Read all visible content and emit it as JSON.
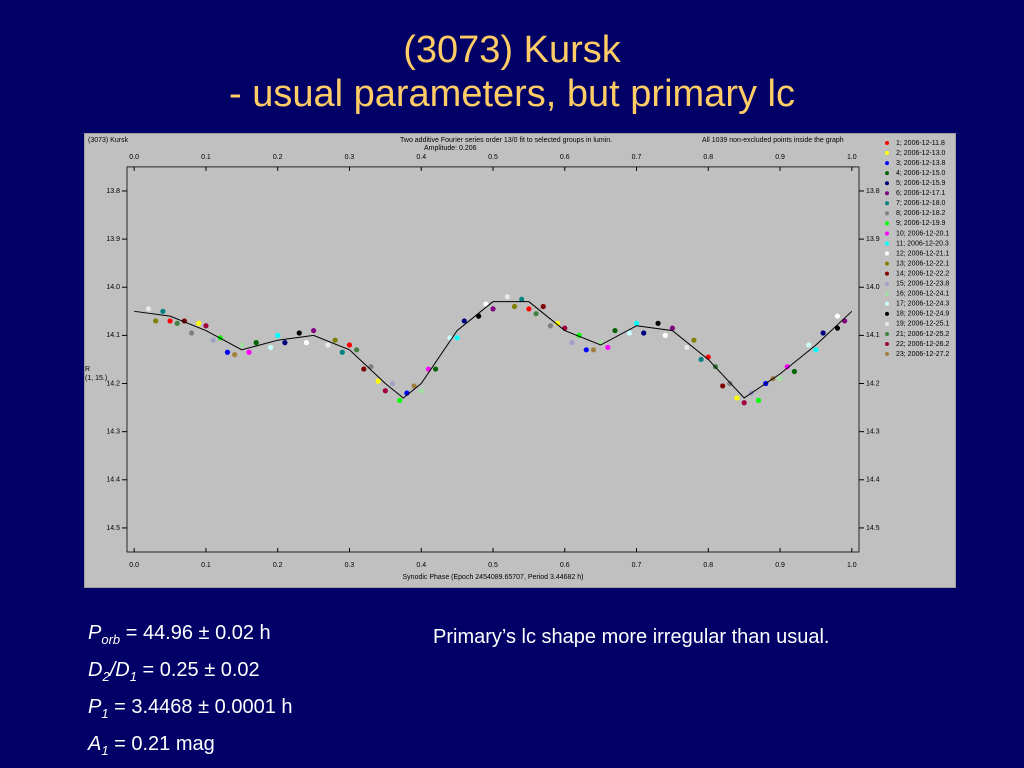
{
  "slide": {
    "title": [
      "(3073) Kursk",
      "- usual parameters, but primary lc"
    ]
  },
  "chart_data": {
    "type": "scatter",
    "object_label": "(3073) Kursk",
    "fit_description": "Two additive Fourier series order 13/0 fit to selected groups in lumin.",
    "amplitude_label": "Amplitude: 0.206",
    "points_note": "All 1039 non-excluded points inside the graph",
    "ylabel": [
      "R",
      "(1, 15.)"
    ],
    "xlabel": "Synodic Phase (Epoch 2454089.65707, Period 3.44682 h)",
    "xlim": [
      -0.01,
      1.01
    ],
    "ylim": [
      13.75,
      14.55
    ],
    "y_inverted": true,
    "xticks": [
      {
        "value": 0,
        "label": "0.0"
      },
      0.1,
      0.2,
      0.3,
      0.4,
      0.5,
      0.6,
      0.7,
      0.8,
      0.9,
      {
        "value": 1,
        "label": "1.0"
      }
    ],
    "yticks": [
      13.8,
      13.9,
      {
        "value": 14,
        "label": "14.0"
      },
      14.1,
      14.2,
      14.3,
      14.4,
      14.5
    ],
    "series": [
      {
        "name": "1; 2006-12-11.8",
        "color": "#ff0000",
        "x": [
          0.05,
          0.3,
          0.55,
          0.8
        ],
        "values": [
          14.07,
          14.12,
          14.045,
          14.145
        ]
      },
      {
        "name": "2; 2006-12-13.0",
        "color": "#ffff00",
        "x": [
          0.09,
          0.34,
          0.59,
          0.84
        ],
        "values": [
          14.075,
          14.195,
          14.075,
          14.23
        ]
      },
      {
        "name": "3; 2006-12-13.8",
        "color": "#0000ff",
        "x": [
          0.13,
          0.38,
          0.63,
          0.88
        ],
        "values": [
          14.135,
          14.22,
          14.13,
          14.2
        ]
      },
      {
        "name": "4; 2006-12-15.0",
        "color": "#006400",
        "x": [
          0.17,
          0.42,
          0.67,
          0.92
        ],
        "values": [
          14.115,
          14.17,
          14.09,
          14.175
        ]
      },
      {
        "name": "5; 2006-12-15.9",
        "color": "#000080",
        "x": [
          0.21,
          0.46,
          0.71,
          0.96
        ],
        "values": [
          14.115,
          14.07,
          14.095,
          14.095
        ]
      },
      {
        "name": "6; 2006-12-17.1",
        "color": "#800080",
        "x": [
          0.25,
          0.5,
          0.75,
          0.99
        ],
        "values": [
          14.09,
          14.045,
          14.085,
          14.07
        ]
      },
      {
        "name": "7; 2006-12-18.0",
        "color": "#008080",
        "x": [
          0.29,
          0.54,
          0.79,
          0.04
        ],
        "values": [
          14.135,
          14.025,
          14.15,
          14.05
        ]
      },
      {
        "name": "8; 2006-12-18.2",
        "color": "#808080",
        "x": [
          0.33,
          0.58,
          0.83,
          0.08
        ],
        "values": [
          14.165,
          14.08,
          14.2,
          14.095
        ]
      },
      {
        "name": "9; 2006-12-19.9",
        "color": "#00ff00",
        "x": [
          0.37,
          0.62,
          0.87,
          0.12
        ],
        "values": [
          14.235,
          14.1,
          14.235,
          14.105
        ]
      },
      {
        "name": "10; 2006-12-20.1",
        "color": "#ff00ff",
        "x": [
          0.41,
          0.66,
          0.91,
          0.16
        ],
        "values": [
          14.17,
          14.125,
          14.165,
          14.135
        ]
      },
      {
        "name": "11; 2006-12-20.3",
        "color": "#00ffff",
        "x": [
          0.45,
          0.7,
          0.95,
          0.2
        ],
        "values": [
          14.105,
          14.075,
          14.13,
          14.1
        ]
      },
      {
        "name": "12; 2006-12-21.1",
        "color": "#ffffff",
        "x": [
          0.49,
          0.74,
          0.98,
          0.24
        ],
        "values": [
          14.035,
          14.1,
          14.06,
          14.115
        ]
      },
      {
        "name": "13; 2006-12-22.1",
        "color": "#808000",
        "x": [
          0.53,
          0.78,
          0.03,
          0.28
        ],
        "values": [
          14.04,
          14.11,
          14.07,
          14.11
        ]
      },
      {
        "name": "14; 2006-12-22.2",
        "color": "#800000",
        "x": [
          0.57,
          0.82,
          0.07,
          0.32
        ],
        "values": [
          14.04,
          14.205,
          14.07,
          14.17
        ]
      },
      {
        "name": "15; 2006-12-23.8",
        "color": "#a0a0c8",
        "x": [
          0.61,
          0.86,
          0.11,
          0.36
        ],
        "values": [
          14.115,
          14.22,
          14.11,
          14.2
        ]
      },
      {
        "name": "16; 2006-12-24.1",
        "color": "#a0e0a0",
        "x": [
          0.65,
          0.9,
          0.15,
          0.4
        ],
        "values": [
          14.115,
          14.19,
          14.12,
          14.215
        ]
      },
      {
        "name": "17; 2006-12-24.3",
        "color": "#c8ffff",
        "x": [
          0.69,
          0.94,
          0.19,
          0.44
        ],
        "values": [
          14.095,
          14.12,
          14.125,
          14.105
        ]
      },
      {
        "name": "18; 2006-12-24.9",
        "color": "#000000",
        "x": [
          0.73,
          0.98,
          0.23,
          0.48
        ],
        "values": [
          14.075,
          14.085,
          14.095,
          14.06
        ]
      },
      {
        "name": "19; 2006-12-25.1",
        "color": "#e8e8e8",
        "x": [
          0.77,
          0.02,
          0.27,
          0.52
        ],
        "values": [
          14.125,
          14.045,
          14.12,
          14.02
        ]
      },
      {
        "name": "21; 2006-12-25.2",
        "color": "#408040",
        "x": [
          0.81,
          0.06,
          0.31,
          0.56
        ],
        "values": [
          14.165,
          14.075,
          14.13,
          14.055
        ]
      },
      {
        "name": "22; 2006-12-26.2",
        "color": "#a00040",
        "x": [
          0.85,
          0.1,
          0.35,
          0.6
        ],
        "values": [
          14.24,
          14.08,
          14.215,
          14.085
        ]
      },
      {
        "name": "23; 2006-12-27.2",
        "color": "#a08040",
        "x": [
          0.89,
          0.14,
          0.39,
          0.64
        ],
        "values": [
          14.19,
          14.14,
          14.205,
          14.13
        ]
      }
    ],
    "fit": {
      "color": "#000000",
      "x": [
        0,
        0.05,
        0.1,
        0.15,
        0.2,
        0.25,
        0.3,
        0.35,
        0.375,
        0.4,
        0.45,
        0.5,
        0.55,
        0.6,
        0.65,
        0.7,
        0.75,
        0.8,
        0.85,
        0.9,
        0.95,
        1
      ],
      "values": [
        14.05,
        14.06,
        14.09,
        14.13,
        14.11,
        14.1,
        14.13,
        14.2,
        14.23,
        14.2,
        14.09,
        14.03,
        14.03,
        14.09,
        14.12,
        14.08,
        14.09,
        14.15,
        14.23,
        14.18,
        14.12,
        14.05
      ]
    }
  },
  "notes": {
    "parameters": [
      {
        "parts": [
          [
            "P",
            "orb"
          ]
        ],
        "text": "= 44.96 ± 0.02 h"
      },
      {
        "parts": [
          [
            "D",
            "2"
          ],
          [
            "/D",
            "1"
          ]
        ],
        "text": "= 0.25 ± 0.02"
      },
      {
        "parts": [
          [
            "P",
            "1"
          ]
        ],
        "text": "= 3.4468 ± 0.0001 h"
      },
      {
        "parts": [
          [
            "A",
            "1"
          ]
        ],
        "text": "= 0.21 mag"
      }
    ],
    "comment": "Primary’s lc shape more irregular than usual."
  }
}
